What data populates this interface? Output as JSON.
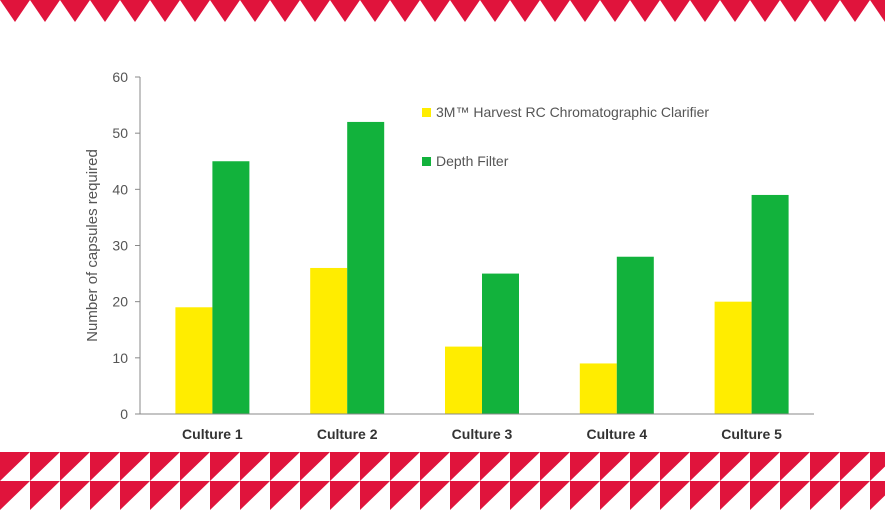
{
  "chart_data": {
    "type": "bar",
    "categories": [
      "Culture 1",
      "Culture 2",
      "Culture 3",
      "Culture 4",
      "Culture 5"
    ],
    "series": [
      {
        "name": "3M™ Harvest RC Chromatographic Clarifier",
        "values": [
          19,
          26,
          12,
          9,
          20
        ],
        "color": "#FFED00"
      },
      {
        "name": "Depth Filter",
        "values": [
          45,
          52,
          25,
          28,
          39
        ],
        "color": "#12B23C"
      }
    ],
    "ylabel": "Number of capsules required",
    "ylim": [
      0,
      60
    ],
    "yticks": [
      0,
      10,
      20,
      30,
      40,
      50,
      60
    ],
    "grid": false,
    "legend_position": "top-right"
  },
  "theme": {
    "band_color": "#E0143C",
    "axis_color": "#888888"
  }
}
